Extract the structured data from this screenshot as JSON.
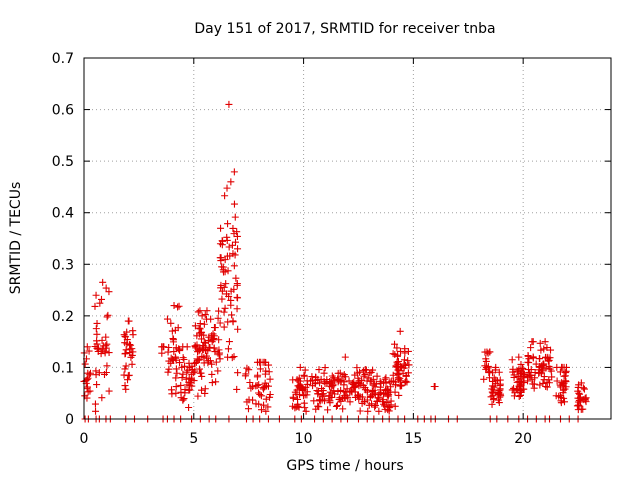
{
  "chart_data": {
    "type": "scatter",
    "title": "Day 151 of 2017, SRMTID for receiver tnba",
    "xlabel": "GPS time / hours",
    "ylabel": "SRMTID / TECUs",
    "xlim": [
      0,
      24
    ],
    "ylim": [
      0,
      0.7
    ],
    "xticks": [
      "0",
      "5",
      "10",
      "15",
      "20"
    ],
    "yticks": [
      "0",
      "0.1",
      "0.2",
      "0.3",
      "0.4",
      "0.5",
      "0.6",
      "0.7"
    ],
    "grid": true,
    "marker": "+",
    "color": "#e00000",
    "series": [
      {
        "name": "SRMTID",
        "clusters": [
          {
            "x_start": 0.0,
            "x_end": 0.3,
            "y_center": 0.09,
            "y_spread": 0.03,
            "y_max": 0.14,
            "count": 18
          },
          {
            "x_start": 0.5,
            "x_end": 1.2,
            "y_center": 0.14,
            "y_spread": 0.05,
            "y_max": 0.265,
            "count": 40
          },
          {
            "x_start": 1.8,
            "x_end": 2.3,
            "y_center": 0.13,
            "y_spread": 0.03,
            "y_max": 0.19,
            "count": 30
          },
          {
            "x_start": 3.5,
            "x_end": 3.7,
            "y_center": 0.135,
            "y_spread": 0.005,
            "y_max": 0.14,
            "count": 3
          },
          {
            "x_start": 3.8,
            "x_end": 4.4,
            "y_center": 0.13,
            "y_spread": 0.05,
            "y_max": 0.22,
            "count": 35
          },
          {
            "x_start": 4.4,
            "x_end": 5.0,
            "y_center": 0.08,
            "y_spread": 0.03,
            "y_max": 0.14,
            "count": 35
          },
          {
            "x_start": 5.0,
            "x_end": 6.2,
            "y_center": 0.13,
            "y_spread": 0.04,
            "y_max": 0.21,
            "count": 90
          },
          {
            "x_start": 6.2,
            "x_end": 7.0,
            "y_center": 0.28,
            "y_spread": 0.1,
            "y_max": 0.61,
            "count": 70
          },
          {
            "x_start": 7.3,
            "x_end": 8.5,
            "y_center": 0.065,
            "y_spread": 0.025,
            "y_max": 0.11,
            "count": 45
          },
          {
            "x_start": 9.5,
            "x_end": 10.2,
            "y_center": 0.05,
            "y_spread": 0.02,
            "y_max": 0.1,
            "count": 40
          },
          {
            "x_start": 10.3,
            "x_end": 13.5,
            "y_center": 0.06,
            "y_spread": 0.02,
            "y_max": 0.12,
            "count": 170
          },
          {
            "x_start": 13.5,
            "x_end": 14.0,
            "y_center": 0.045,
            "y_spread": 0.015,
            "y_max": 0.08,
            "count": 35
          },
          {
            "x_start": 14.0,
            "x_end": 14.8,
            "y_center": 0.09,
            "y_spread": 0.03,
            "y_max": 0.17,
            "count": 55
          },
          {
            "x_start": 15.9,
            "x_end": 16.0,
            "y_center": 0.063,
            "y_spread": 0.001,
            "y_max": 0.063,
            "count": 1
          },
          {
            "x_start": 18.2,
            "x_end": 18.5,
            "y_center": 0.11,
            "y_spread": 0.02,
            "y_max": 0.13,
            "count": 15
          },
          {
            "x_start": 18.5,
            "x_end": 19.0,
            "y_center": 0.06,
            "y_spread": 0.02,
            "y_max": 0.1,
            "count": 35
          },
          {
            "x_start": 19.5,
            "x_end": 20.1,
            "y_center": 0.075,
            "y_spread": 0.02,
            "y_max": 0.12,
            "count": 45
          },
          {
            "x_start": 20.2,
            "x_end": 20.6,
            "y_center": 0.1,
            "y_spread": 0.025,
            "y_max": 0.15,
            "count": 25
          },
          {
            "x_start": 20.7,
            "x_end": 21.3,
            "y_center": 0.1,
            "y_spread": 0.025,
            "y_max": 0.15,
            "count": 40
          },
          {
            "x_start": 21.5,
            "x_end": 22.0,
            "y_center": 0.065,
            "y_spread": 0.02,
            "y_max": 0.1,
            "count": 30
          },
          {
            "x_start": 22.4,
            "x_end": 22.9,
            "y_center": 0.04,
            "y_spread": 0.015,
            "y_max": 0.07,
            "count": 25
          }
        ],
        "zero_points_x": [
          0.05,
          0.2,
          0.55,
          0.7,
          1.0,
          1.2,
          1.9,
          2.3,
          2.9,
          3.6,
          3.8,
          4.1,
          4.4,
          4.9,
          5.3,
          5.7,
          6.0,
          6.6,
          7.4,
          7.7,
          8.0,
          8.4,
          8.9,
          9.6,
          9.9,
          10.5,
          10.9,
          11.3,
          11.7,
          12.0,
          12.5,
          12.9,
          13.2,
          13.6,
          13.9,
          14.3,
          14.6,
          15.2,
          15.5,
          15.8,
          16.0,
          16.6,
          17.0,
          18.5,
          18.8,
          19.3,
          19.8,
          20.2,
          20.6,
          21.0,
          21.2,
          21.7,
          22.1,
          22.5
        ]
      }
    ]
  }
}
